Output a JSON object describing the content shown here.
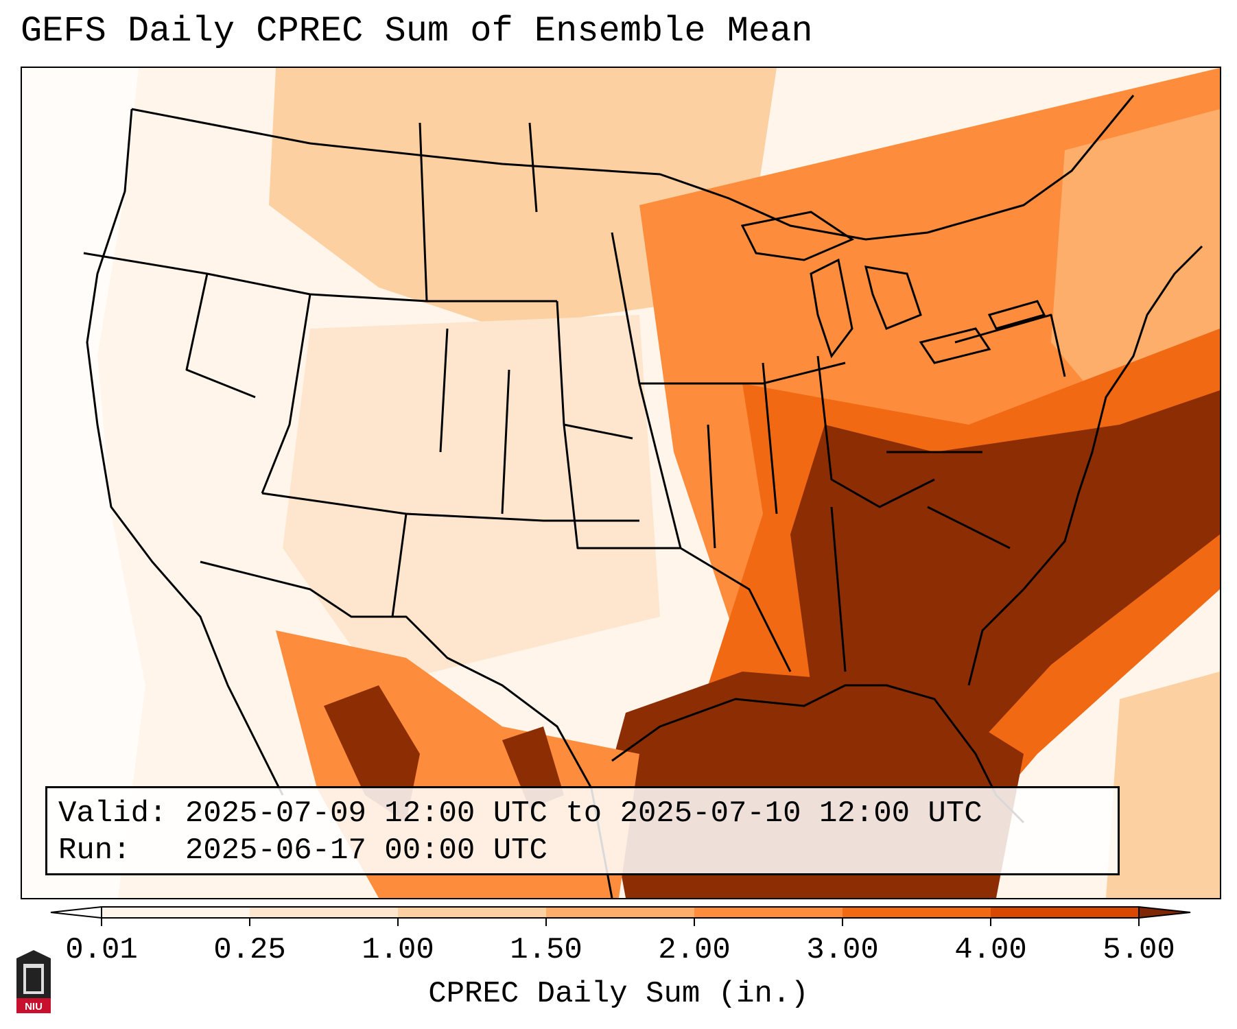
{
  "title": "GEFS Daily CPREC Sum of Ensemble Mean",
  "info": {
    "valid_label": "Valid:",
    "valid_value": "2025-07-09 12:00 UTC to 2025-07-10 12:00 UTC",
    "run_label": "Run:",
    "run_value": "2025-06-17 00:00 UTC"
  },
  "colorbar": {
    "label": "CPREC Daily Sum (in.)",
    "ticks": [
      "0.01",
      "0.25",
      "1.00",
      "1.50",
      "2.00",
      "3.00",
      "4.00",
      "5.00"
    ],
    "colors": [
      "#fff5eb",
      "#fee6ce",
      "#fdd0a2",
      "#fdae6b",
      "#fd8d3c",
      "#f16913",
      "#d94801",
      "#8c2d04"
    ],
    "under_color": "#ffffff",
    "over_color": "#7f2704"
  },
  "logo": {
    "text": "NIU",
    "color": "#c8102e"
  }
}
